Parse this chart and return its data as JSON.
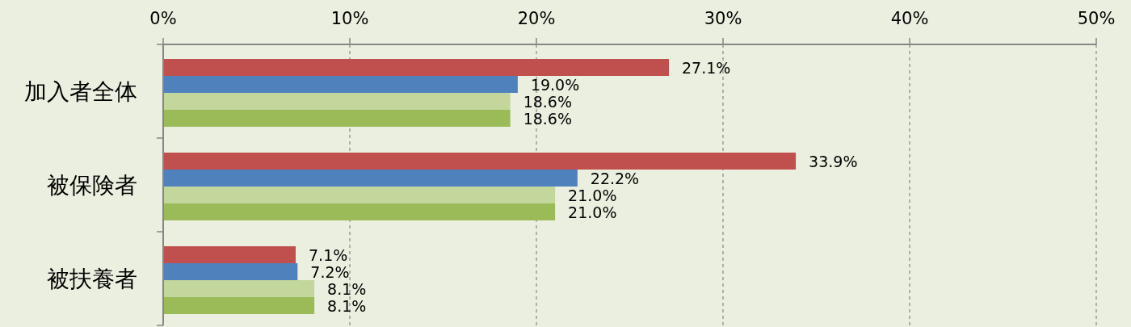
{
  "chart_data": {
    "type": "bar",
    "orientation": "horizontal",
    "categories": [
      "加入者全体",
      "被保険者",
      "被扶養者"
    ],
    "series": [
      {
        "color": "#c0504d",
        "values": [
          27.1,
          33.9,
          7.1
        ],
        "value_labels": [
          "27.1%",
          "33.9%",
          "7.1%"
        ]
      },
      {
        "color": "#4f81bd",
        "values": [
          19.0,
          22.2,
          7.2
        ],
        "value_labels": [
          "19.0%",
          "22.2%",
          "7.2%"
        ]
      },
      {
        "color": "#c3d69b",
        "values": [
          18.6,
          21.0,
          8.1
        ],
        "value_labels": [
          "18.6%",
          "21.0%",
          "8.1%"
        ]
      },
      {
        "color": "#9bbb59",
        "values": [
          18.6,
          21.0,
          8.1
        ],
        "value_labels": [
          "18.6%",
          "21.0%",
          "8.1%"
        ]
      }
    ],
    "xlim": [
      0,
      50
    ],
    "xticks": [
      {
        "value": 0,
        "label": "0%"
      },
      {
        "value": 10,
        "label": "10%"
      },
      {
        "value": 20,
        "label": "20%"
      },
      {
        "value": 30,
        "label": "30%"
      },
      {
        "value": 40,
        "label": "40%"
      },
      {
        "value": 50,
        "label": "50%"
      }
    ],
    "grid": "x",
    "line_style": "dashed"
  }
}
